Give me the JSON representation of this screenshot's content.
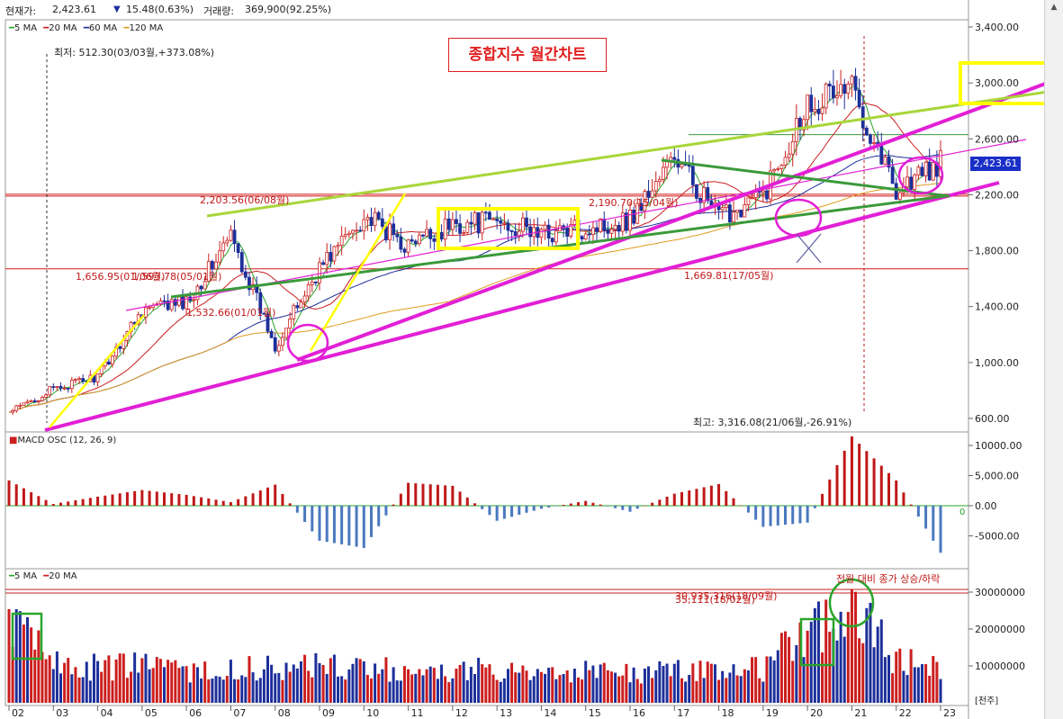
{
  "header": {
    "current_label": "현재가:",
    "current_value": "2,423.61",
    "change_arrow": "down-triangle",
    "change": "15.48(0.63%)",
    "volume_label": "거래량:",
    "volume_value": "369,900(92.25%)"
  },
  "title_box": "종합지수 월간차트",
  "price_panel": {
    "legend": [
      {
        "label": "5 MA",
        "color": "#2aa52a"
      },
      {
        "label": "20 MA",
        "color": "#cc1e1e"
      },
      {
        "label": "60 MA",
        "color": "#1d2f9a"
      },
      {
        "label": "120 MA",
        "color": "#e09a1e"
      }
    ],
    "low_note": "최저: 512.30(03/03월,+373.08%)",
    "high_note": "최고: 3,316.08(21/06월,-26.91%)",
    "current_tag": "2,423.61",
    "y_ticks": [
      "3,400.00",
      "3,000.00",
      "2,600.00",
      "2,200.00",
      "1,800.00",
      "1,400.00",
      "1,000.00",
      "600.00"
    ],
    "annotations": [
      "2,203.56(06/08월)",
      "1,656.95(01/06월)",
      "1,593.78(05/01월)",
      "1,532.66(01/01월)",
      "2,190.70(15/04월)",
      "1,669.81(17/05월)"
    ]
  },
  "macd_panel": {
    "legend": "MACD OSC (12, 26, 9)",
    "y_ticks": [
      "10000.00",
      "5,000.00",
      "0.00",
      "-5000.00"
    ],
    "zero_label": "0"
  },
  "volume_panel": {
    "legend": [
      {
        "label": "5 MA",
        "color": "#2aa52a"
      },
      {
        "label": "20 MA",
        "color": "#cc1e1e"
      }
    ],
    "subtitle": "전월 대비 종가 상승/하락",
    "annotations": [
      "30,935,316(18/09월)",
      "35,111(18/02월)"
    ],
    "y_ticks": [
      "30000000",
      "20000000",
      "10000000"
    ],
    "unit": "[천주]"
  },
  "x_axis": {
    "labels": [
      "02",
      "03",
      "04",
      "05",
      "06",
      "07",
      "08",
      "09",
      "10",
      "11",
      "12",
      "13",
      "14",
      "15",
      "16",
      "17",
      "18",
      "19",
      "20",
      "21",
      "22",
      "23"
    ]
  },
  "colors": {
    "up": "#cc1e1e",
    "down": "#1d2f9a",
    "osc_pos": "#c01818",
    "osc_neg": "#4a78c0",
    "trend_magenta": "#e21fd6",
    "trend_yellow": "#ffff00",
    "trend_lime": "#a8d63a",
    "trend_green": "#3a9a3a"
  },
  "chart_data": [
    {
      "type": "candlestick",
      "title": "종합지수 월간차트",
      "interval": "monthly",
      "x": [
        "02",
        "03",
        "04",
        "05",
        "06",
        "07",
        "08",
        "09",
        "10",
        "11",
        "12",
        "13",
        "14",
        "15",
        "16",
        "17",
        "18",
        "19",
        "20",
        "21",
        "22",
        "23"
      ],
      "close_year_end": [
        640,
        810,
        900,
        1380,
        1430,
        1900,
        1120,
        1680,
        2050,
        1830,
        1990,
        2010,
        1920,
        1960,
        2030,
        2470,
        2040,
        2200,
        2870,
        2970,
        2240,
        2423
      ],
      "y_axis_range": [
        580,
        3500
      ],
      "high": 3316.08,
      "high_date": "21/06",
      "low": 512.3,
      "low_date": "03/03",
      "current": 2423.61,
      "moving_averages": [
        "5 MA",
        "20 MA",
        "60 MA",
        "120 MA"
      ]
    },
    {
      "type": "bar",
      "title": "MACD OSC (12, 26, 9)",
      "x": [
        "02",
        "03",
        "04",
        "05",
        "06",
        "07",
        "08",
        "09",
        "10",
        "11",
        "12",
        "13",
        "14",
        "15",
        "16",
        "17",
        "18",
        "19",
        "20",
        "21",
        "22",
        "23"
      ],
      "values": [
        4200,
        300,
        1500,
        2600,
        1800,
        600,
        3500,
        -5800,
        -7000,
        3800,
        3300,
        -2500,
        -500,
        800,
        -1000,
        2000,
        3600,
        -3500,
        -2800,
        11500,
        4200,
        -7800
      ],
      "ylim": [
        -8000,
        12000
      ]
    },
    {
      "type": "bar",
      "title": "거래량",
      "unit": "천주",
      "x": [
        "02",
        "03",
        "04",
        "05",
        "06",
        "07",
        "08",
        "09",
        "10",
        "11",
        "12",
        "13",
        "14",
        "15",
        "16",
        "17",
        "18",
        "19",
        "20",
        "21",
        "22",
        "23"
      ],
      "values": [
        22000000,
        11000000,
        9500000,
        10000000,
        8000000,
        9000000,
        9500000,
        10500000,
        8500000,
        9500000,
        8500000,
        9000000,
        7500000,
        9000000,
        8500000,
        8500000,
        9500000,
        9000000,
        21000000,
        26000000,
        12000000,
        8500000
      ],
      "ylim": [
        0,
        32000000
      ]
    }
  ]
}
